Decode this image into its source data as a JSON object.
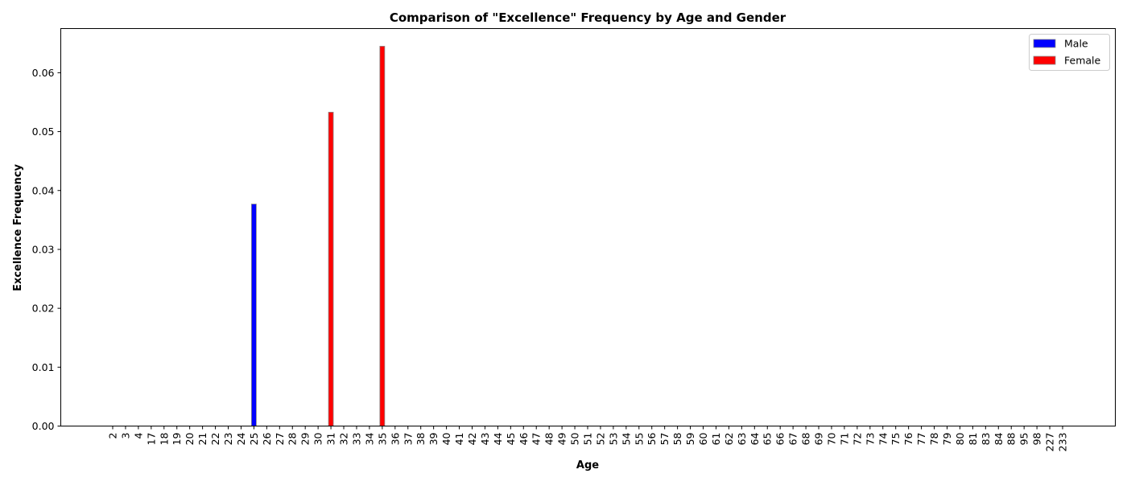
{
  "chart_data": {
    "type": "bar",
    "title": "Comparison of \"Excellence\" Frequency by Age and Gender",
    "xlabel": "Age",
    "ylabel": "Excellence Frequency",
    "ylim": [
      0,
      0.0675
    ],
    "yticks": [
      "0.00",
      "0.01",
      "0.02",
      "0.03",
      "0.04",
      "0.05",
      "0.06"
    ],
    "ytick_values": [
      0,
      0.01,
      0.02,
      0.03,
      0.04,
      0.05,
      0.06
    ],
    "grid": false,
    "legend_position": "top-right",
    "categories": [
      "2",
      "3",
      "4",
      "17",
      "18",
      "19",
      "20",
      "21",
      "22",
      "23",
      "24",
      "25",
      "26",
      "27",
      "28",
      "29",
      "30",
      "31",
      "32",
      "33",
      "34",
      "35",
      "36",
      "37",
      "38",
      "39",
      "40",
      "41",
      "42",
      "43",
      "44",
      "45",
      "46",
      "47",
      "48",
      "49",
      "50",
      "51",
      "52",
      "53",
      "54",
      "55",
      "56",
      "57",
      "58",
      "59",
      "60",
      "61",
      "62",
      "63",
      "64",
      "65",
      "66",
      "67",
      "68",
      "69",
      "70",
      "71",
      "72",
      "73",
      "74",
      "75",
      "76",
      "77",
      "78",
      "79",
      "80",
      "81",
      "83",
      "84",
      "88",
      "95",
      "98",
      "227",
      "233"
    ],
    "series": [
      {
        "name": "Male",
        "color": "#0000ff",
        "values": [
          0,
          0,
          0,
          0,
          0,
          0,
          0,
          0,
          0,
          0,
          0,
          0.0377,
          0,
          0,
          0,
          0,
          0,
          0,
          0,
          0,
          0,
          0,
          0,
          0,
          0,
          0,
          0,
          0,
          0,
          0,
          0,
          0,
          0,
          0,
          0,
          0,
          0,
          0,
          0,
          0,
          0,
          0,
          0,
          0,
          0,
          0,
          0,
          0,
          0,
          0,
          0,
          0,
          0,
          0,
          0,
          0,
          0,
          0,
          0,
          0,
          0,
          0,
          0,
          0,
          0,
          0,
          0,
          0,
          0,
          0,
          0,
          0,
          0,
          0,
          0
        ]
      },
      {
        "name": "Female",
        "color": "#ff0000",
        "values": [
          0,
          0,
          0,
          0,
          0,
          0,
          0,
          0,
          0,
          0,
          0,
          0,
          0,
          0,
          0,
          0,
          0,
          0.0533,
          0,
          0,
          0,
          0.0645,
          0,
          0,
          0,
          0,
          0,
          0,
          0,
          0,
          0,
          0,
          0,
          0,
          0,
          0,
          0,
          0,
          0,
          0,
          0,
          0,
          0,
          0,
          0,
          0,
          0,
          0,
          0,
          0,
          0,
          0,
          0,
          0,
          0,
          0,
          0,
          0,
          0,
          0,
          0,
          0,
          0,
          0,
          0,
          0,
          0,
          0,
          0,
          0,
          0,
          0,
          0,
          0,
          0
        ]
      }
    ]
  }
}
